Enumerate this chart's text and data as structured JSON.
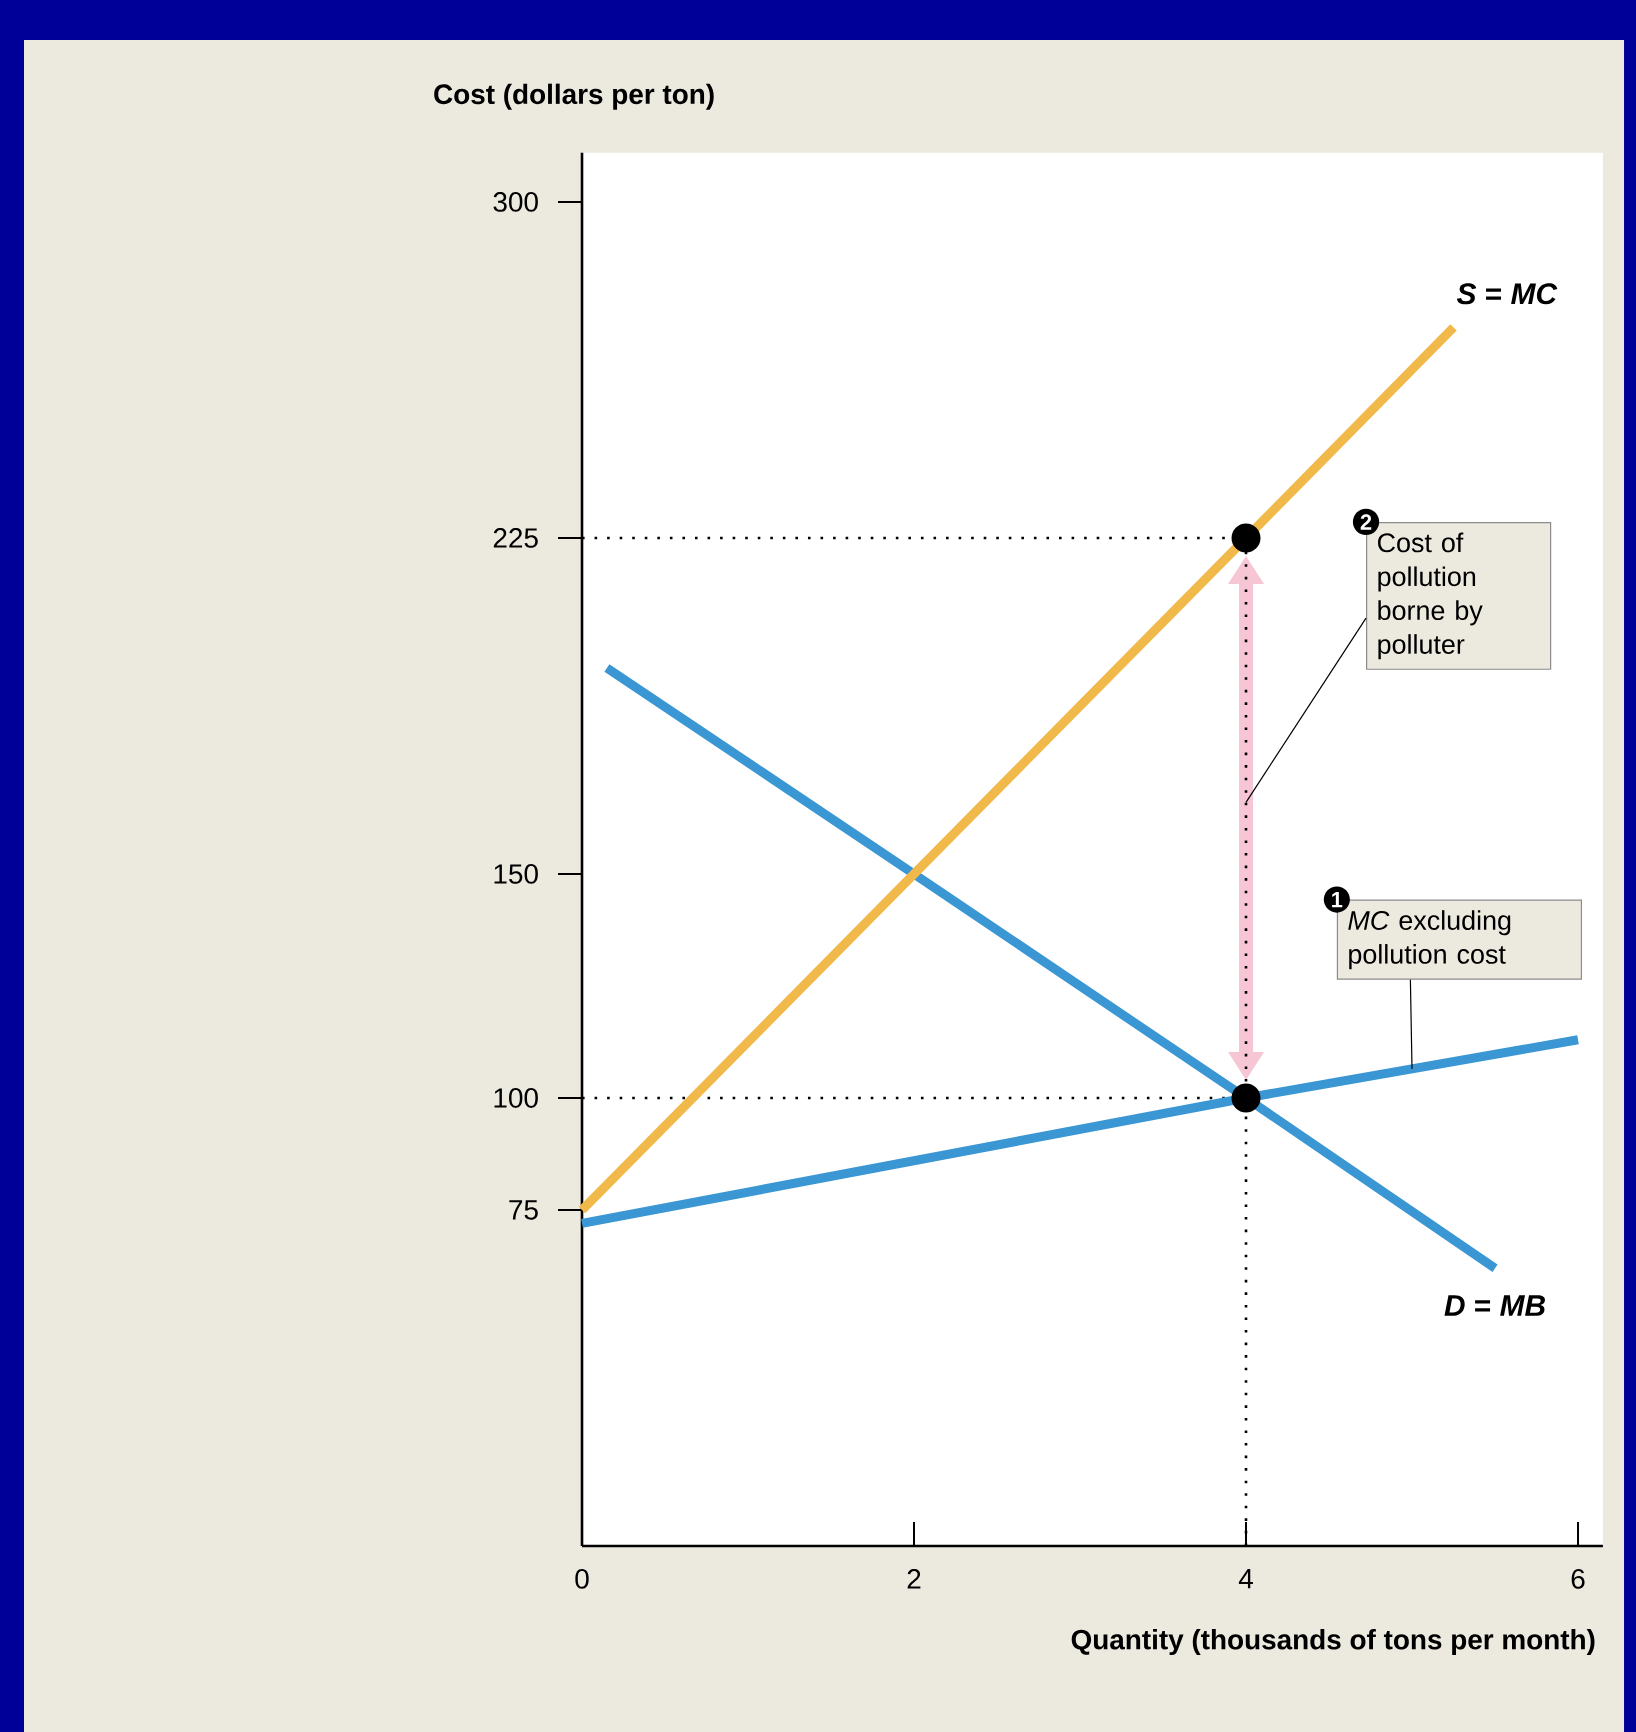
{
  "chart_data": {
    "type": "line",
    "xlabel": "Quantity (thousands of tons per month)",
    "ylabel": "Cost (dollars per ton)",
    "xlim": [
      0,
      6.15
    ],
    "ylim": [
      0,
      311
    ],
    "xticks": [
      0,
      2,
      4,
      6
    ],
    "yticks": [
      75,
      100,
      150,
      225,
      300
    ],
    "series": [
      {
        "name": "*MC* excluding pollution cost",
        "color": "#3a97d3",
        "x": [
          0,
          4,
          6
        ],
        "values": [
          72,
          100,
          113
        ]
      },
      {
        "name": "*D* = *MB*",
        "color": "#3a97d3",
        "x": [
          0.15,
          2,
          4,
          5.5
        ],
        "values": [
          196,
          150,
          100,
          62
        ]
      },
      {
        "name": "*S* = *MC*",
        "color": "#f0b949",
        "x": [
          0,
          2,
          4,
          5.25
        ],
        "values": [
          75,
          150,
          225,
          272
        ]
      },
      {
        "type": "scatter",
        "color": "#000000",
        "x": [
          4,
          4
        ],
        "values": [
          225,
          100
        ]
      }
    ],
    "ref_lines": [
      {
        "axis": "y",
        "value": 225,
        "line_style": "dotted",
        "color": "#000000"
      },
      {
        "axis": "y",
        "value": 100,
        "line_style": "dotted",
        "color": "#000000"
      },
      {
        "axis": "x",
        "value": 4,
        "line_style": "dotted",
        "color": "#000000"
      }
    ],
    "annotations": [
      "2",
      {
        "text": "Cost of pollution borne by polluter",
        "x": 4,
        "y": 166
      },
      "1"
    ]
  }
}
